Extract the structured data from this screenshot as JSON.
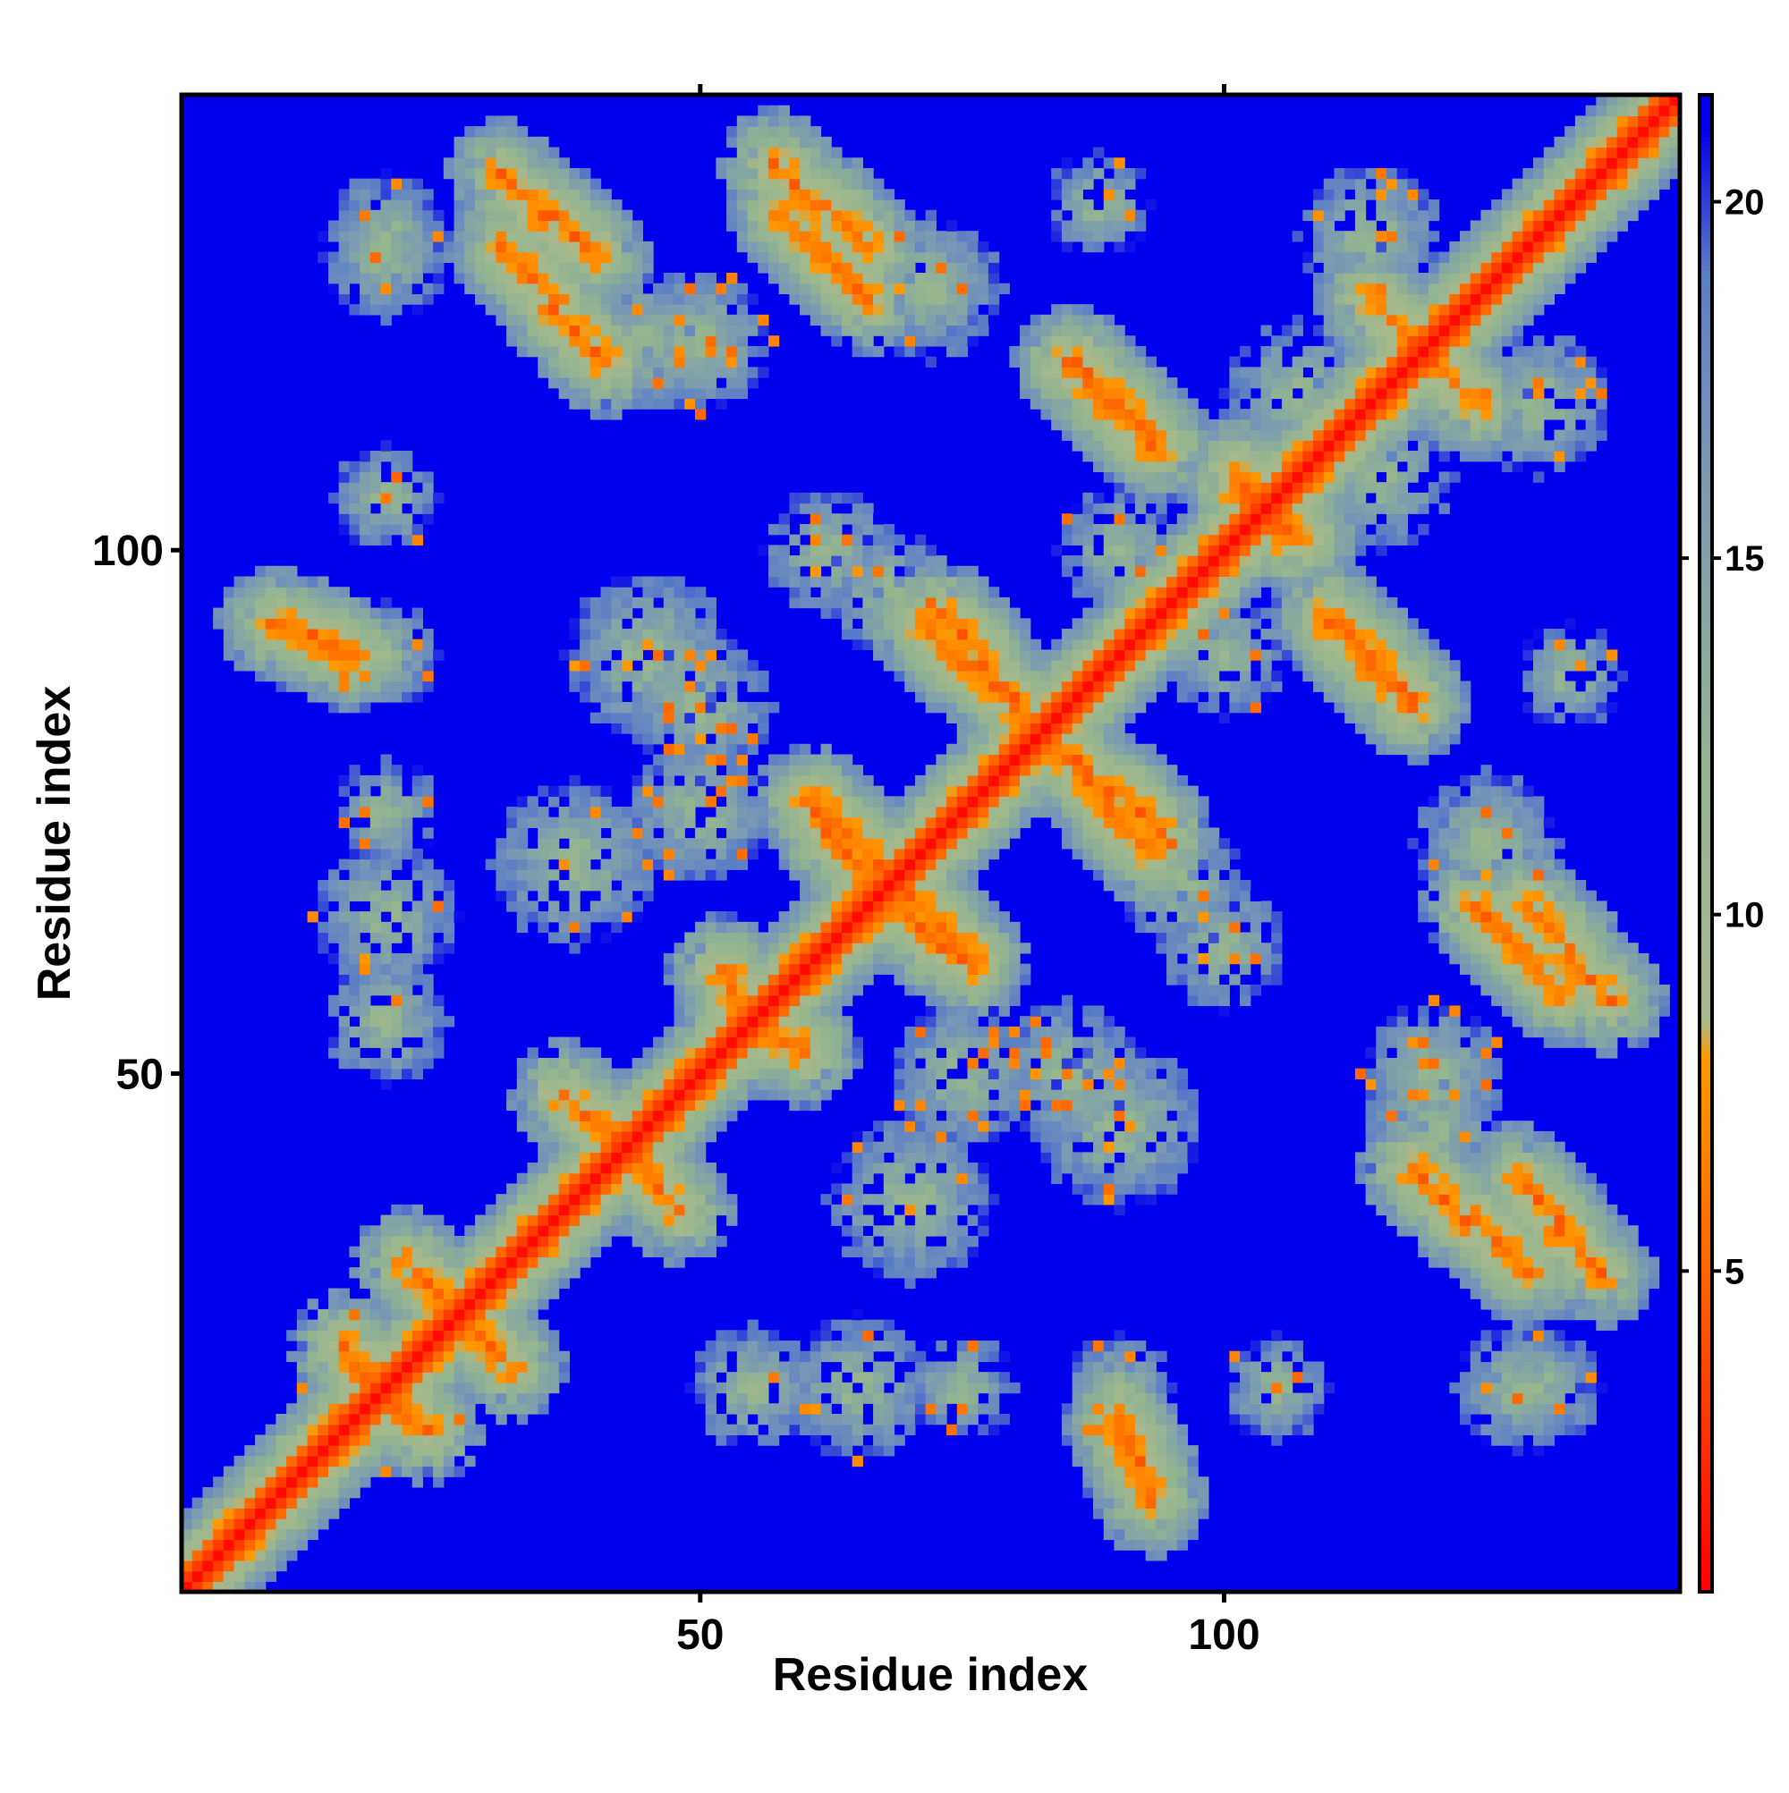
{
  "chart_data": {
    "type": "heatmap",
    "title": "",
    "xlabel": "Residue index",
    "ylabel": "Residue index",
    "n_residues": 143,
    "xlim": [
      1,
      143
    ],
    "ylim": [
      1,
      143
    ],
    "x_ticks": [
      50,
      100
    ],
    "y_ticks": [
      50,
      100
    ],
    "colorbar": {
      "ticks": [
        5,
        10,
        15,
        20
      ],
      "range": [
        0.5,
        21.5
      ],
      "stops": [
        {
          "value": 0.5,
          "color": "#ff0000"
        },
        {
          "value": 5.0,
          "color": "#ff6600"
        },
        {
          "value": 8.0,
          "color": "#ff9900"
        },
        {
          "value": 8.5,
          "color": "#a8b88a"
        },
        {
          "value": 12.0,
          "color": "#94b490"
        },
        {
          "value": 16.0,
          "color": "#7b9bb2"
        },
        {
          "value": 19.0,
          "color": "#5a7ec6"
        },
        {
          "value": 21.0,
          "color": "#0000ee"
        }
      ]
    },
    "background_value": 21,
    "diagonal_value": 1,
    "contact_segments": [
      {
        "x": [
          31,
          40
        ],
        "y": [
          136,
          128
        ]
      },
      {
        "x": [
          57,
          66
        ],
        "y": [
          137,
          129
        ]
      },
      {
        "x": [
          85,
          94
        ],
        "y": [
          118,
          110
        ]
      },
      {
        "x": [
          71,
          81
        ],
        "y": [
          93,
          84
        ]
      },
      {
        "x": [
          86,
          94
        ],
        "y": [
          80,
          73
        ]
      },
      {
        "x": [
          60,
          66
        ],
        "y": [
          76,
          68
        ]
      },
      {
        "x": [
          69,
          76
        ],
        "y": [
          68,
          61
        ]
      },
      {
        "x": [
          110,
          118
        ],
        "y": [
          93,
          86
        ]
      },
      {
        "x": [
          124,
          132
        ],
        "y": [
          66,
          58
        ]
      },
      {
        "x": [
          118,
          129
        ],
        "y": [
          41,
          31
        ]
      },
      {
        "x": [
          9,
          17
        ],
        "y": [
          93,
          90
        ]
      },
      {
        "x": [
          37,
          45
        ],
        "y": [
          48,
          41
        ]
      },
      {
        "x": [
          52,
          57
        ],
        "y": [
          60,
          53
        ]
      },
      {
        "x": [
          101,
          108
        ],
        "y": [
          106,
          101
        ]
      },
      {
        "x": [
          114,
          120
        ],
        "y": [
          124,
          118
        ]
      },
      {
        "x": [
          22,
          30
        ],
        "y": [
          32,
          24
        ]
      },
      {
        "x": [
          16,
          22
        ],
        "y": [
          24,
          17
        ]
      }
    ],
    "contact_patches": [
      {
        "x": 20,
        "y": 130,
        "r": 6
      },
      {
        "x": 20,
        "y": 105,
        "r": 5
      },
      {
        "x": 45,
        "y": 120,
        "r": 7
      },
      {
        "x": 72,
        "y": 125,
        "r": 7
      },
      {
        "x": 62,
        "y": 100,
        "r": 6
      },
      {
        "x": 88,
        "y": 133,
        "r": 5
      },
      {
        "x": 114,
        "y": 130,
        "r": 7
      },
      {
        "x": 70,
        "y": 38,
        "r": 8
      },
      {
        "x": 90,
        "y": 45,
        "r": 8
      },
      {
        "x": 90,
        "y": 20,
        "r": 5
      },
      {
        "x": 55,
        "y": 20,
        "r": 6
      },
      {
        "x": 75,
        "y": 20,
        "r": 5
      },
      {
        "x": 20,
        "y": 65,
        "r": 7
      },
      {
        "x": 20,
        "y": 20,
        "r": 8
      },
      {
        "x": 128,
        "y": 20,
        "r": 6
      },
      {
        "x": 120,
        "y": 50,
        "r": 7
      },
      {
        "x": 125,
        "y": 72,
        "r": 6
      },
      {
        "x": 96,
        "y": 68,
        "r": 6
      },
      {
        "x": 50,
        "y": 75,
        "r": 7
      },
      {
        "x": 50,
        "y": 85,
        "r": 7
      },
      {
        "x": 107,
        "y": 115,
        "r": 7
      },
      {
        "x": 90,
        "y": 100,
        "r": 6
      }
    ]
  }
}
